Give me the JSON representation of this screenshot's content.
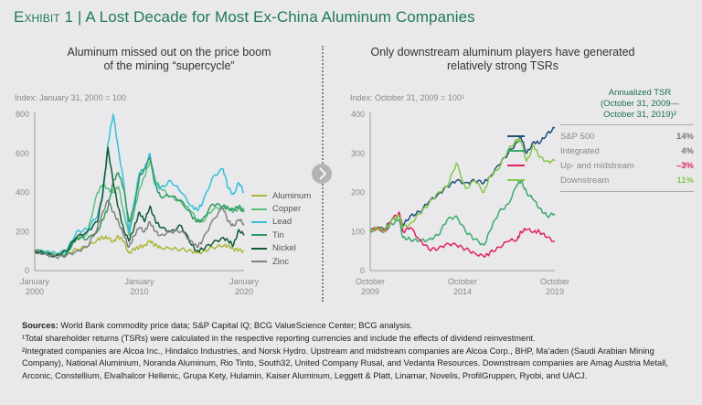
{
  "title": {
    "prefix": "Exhibit 1",
    "separator": " | ",
    "text": "A Lost Decade for Most Ex-China Aluminum Companies"
  },
  "left_panel": {
    "subtitle_line1": "Aluminum missed out on the price boom",
    "subtitle_line2": "of the mining “supercycle”",
    "index_label": "Index: January 31, 2000 = 100"
  },
  "right_panel": {
    "subtitle_line1": "Only downstream aluminum players have generated",
    "subtitle_line2": "relatively strong TSRs",
    "index_label": "Index: October 31, 2009 = 100¹",
    "tsr_header_line1": "Annualized TSR",
    "tsr_header_line2": "(October 31, 2009—",
    "tsr_header_line3": "October 31, 2019)²"
  },
  "nav_button": {
    "icon": "chevron-right-icon"
  },
  "chart_data": [
    {
      "type": "line",
      "title": "Aluminum missed out on the price boom of the mining “supercycle”",
      "ylabel": "Index: January 31, 2000 = 100",
      "ylim": [
        0,
        800
      ],
      "yticks": [
        0,
        200,
        400,
        600,
        800
      ],
      "xlim": [
        2000,
        2020
      ],
      "xticks": [
        {
          "value": 2000,
          "label1": "January",
          "label2": "2000"
        },
        {
          "value": 2010,
          "label1": "January",
          "label2": "2010"
        },
        {
          "value": 2020,
          "label1": "January",
          "label2": "2020"
        }
      ],
      "legend_position": "right",
      "grid": false,
      "x": [
        2000,
        2001,
        2002,
        2003,
        2004,
        2005,
        2006,
        2006.5,
        2007,
        2007.5,
        2008,
        2008.5,
        2009,
        2009.5,
        2010,
        2010.5,
        2011,
        2011.5,
        2012,
        2013,
        2014,
        2015,
        2015.5,
        2016,
        2017,
        2018,
        2018.5,
        2019,
        2019.5,
        2020
      ],
      "series": [
        {
          "name": "Aluminum",
          "color": "#a8b838",
          "values": [
            100,
            90,
            80,
            85,
            110,
            120,
            160,
            170,
            165,
            150,
            175,
            150,
            90,
            110,
            120,
            130,
            150,
            130,
            120,
            110,
            110,
            100,
            90,
            95,
            120,
            125,
            130,
            110,
            105,
            100
          ]
        },
        {
          "name": "Copper",
          "color": "#5cbf80",
          "values": [
            100,
            95,
            80,
            90,
            160,
            190,
            400,
            440,
            420,
            400,
            430,
            300,
            180,
            300,
            420,
            480,
            560,
            470,
            420,
            380,
            350,
            300,
            260,
            250,
            310,
            330,
            320,
            300,
            320,
            310
          ]
        },
        {
          "name": "Lead",
          "color": "#35bfdd",
          "values": [
            100,
            95,
            90,
            95,
            200,
            210,
            280,
            380,
            650,
            800,
            620,
            450,
            200,
            350,
            500,
            520,
            600,
            450,
            420,
            460,
            400,
            330,
            310,
            340,
            480,
            520,
            420,
            390,
            450,
            400
          ]
        },
        {
          "name": "Tin",
          "color": "#2e9a60",
          "values": [
            100,
            90,
            75,
            85,
            170,
            160,
            200,
            260,
            320,
            460,
            500,
            420,
            250,
            320,
            480,
            520,
            580,
            440,
            380,
            380,
            360,
            280,
            250,
            260,
            340,
            330,
            320,
            310,
            330,
            300
          ]
        },
        {
          "name": "Nickel",
          "color": "#0f5c35",
          "values": [
            100,
            85,
            75,
            100,
            170,
            200,
            250,
            400,
            630,
            450,
            320,
            210,
            150,
            220,
            300,
            250,
            330,
            260,
            220,
            200,
            230,
            130,
            100,
            110,
            140,
            170,
            150,
            130,
            210,
            180
          ]
        },
        {
          "name": "Zinc",
          "color": "#808080",
          "values": [
            100,
            85,
            70,
            75,
            100,
            120,
            220,
            300,
            360,
            300,
            250,
            180,
            120,
            180,
            220,
            200,
            250,
            200,
            180,
            200,
            200,
            150,
            120,
            150,
            260,
            320,
            250,
            230,
            260,
            240
          ]
        }
      ]
    },
    {
      "type": "line",
      "title": "Only downstream aluminum players have generated relatively strong TSRs",
      "ylabel": "Index: October 31, 2009 = 100¹",
      "ylim": [
        0,
        400
      ],
      "yticks": [
        0,
        100,
        200,
        300,
        400
      ],
      "xlim": [
        2009.83,
        2019.83
      ],
      "xticks": [
        {
          "value": 2009.83,
          "label1": "October",
          "label2": "2009"
        },
        {
          "value": 2014.83,
          "label1": "October",
          "label2": "2014"
        },
        {
          "value": 2019.83,
          "label1": "October",
          "label2": "2019"
        }
      ],
      "legend_position": "right",
      "grid": false,
      "x": [
        2009.83,
        2010.2,
        2010.6,
        2011.0,
        2011.4,
        2011.6,
        2012.0,
        2012.5,
        2013.0,
        2013.5,
        2014.0,
        2014.5,
        2015.0,
        2015.5,
        2016.0,
        2016.3,
        2016.8,
        2017.3,
        2017.8,
        2018.0,
        2018.3,
        2018.7,
        2019.0,
        2019.4,
        2019.83
      ],
      "series": [
        {
          "name": "S&P 500",
          "color": "#1f4e79",
          "tsr": "14%",
          "tsr_color": "#777777",
          "values": [
            100,
            110,
            105,
            130,
            140,
            115,
            140,
            150,
            175,
            195,
            215,
            230,
            225,
            230,
            225,
            240,
            270,
            300,
            330,
            340,
            300,
            330,
            325,
            350,
            365
          ]
        },
        {
          "name": "Integrated",
          "color": "#3aab6a",
          "tsr": "4%",
          "tsr_color": "#777777",
          "values": [
            100,
            110,
            100,
            120,
            130,
            85,
            80,
            75,
            80,
            90,
            130,
            140,
            100,
            80,
            65,
            100,
            150,
            170,
            220,
            230,
            200,
            180,
            160,
            140,
            145
          ]
        },
        {
          "name": "Up- and midstream",
          "color": "#e0245e",
          "tsr": "–3%",
          "tsr_color": "#e0245e",
          "values": [
            100,
            110,
            100,
            130,
            150,
            100,
            110,
            80,
            55,
            55,
            70,
            65,
            55,
            45,
            35,
            45,
            60,
            75,
            80,
            100,
            105,
            100,
            100,
            85,
            75
          ]
        },
        {
          "name": "Downstream",
          "color": "#86c84a",
          "tsr": "11%",
          "tsr_color": "#86c84a",
          "values": [
            100,
            110,
            100,
            130,
            140,
            110,
            120,
            145,
            170,
            200,
            215,
            275,
            210,
            230,
            200,
            240,
            260,
            310,
            335,
            330,
            280,
            320,
            290,
            280,
            280
          ]
        }
      ]
    }
  ],
  "footnotes": {
    "sources_label": "Sources:",
    "sources_text": " World Bank commodity price data; S&P Capital IQ; BCG ValueScience Center; BCG analysis.",
    "note1": "¹Total shareholder returns (TSRs) were calculated in the respective reporting currencies and include the effects of dividend reinvestment.",
    "note2": "²Integrated companies are Alcoa Inc., Hindalco Industries, and Norsk Hydro. Upstream and midstream companies are Alcoa Corp., BHP, Ma’aden (Saudi Arabian Mining Company), National Aluminium, Noranda Aluminum, Rio Tinto, South32, United Company Rusal, and Vedanta Resources. Downstream companies are Amag Austria Metall, Arconic, Constellium, Elvalhalcor Hellenic, Grupa Kety, Hulamin, Kaiser Aluminum, Leggett & Platt, Linamar, Novelis, ProfilGruppen, Ryobi, and UACJ."
  }
}
